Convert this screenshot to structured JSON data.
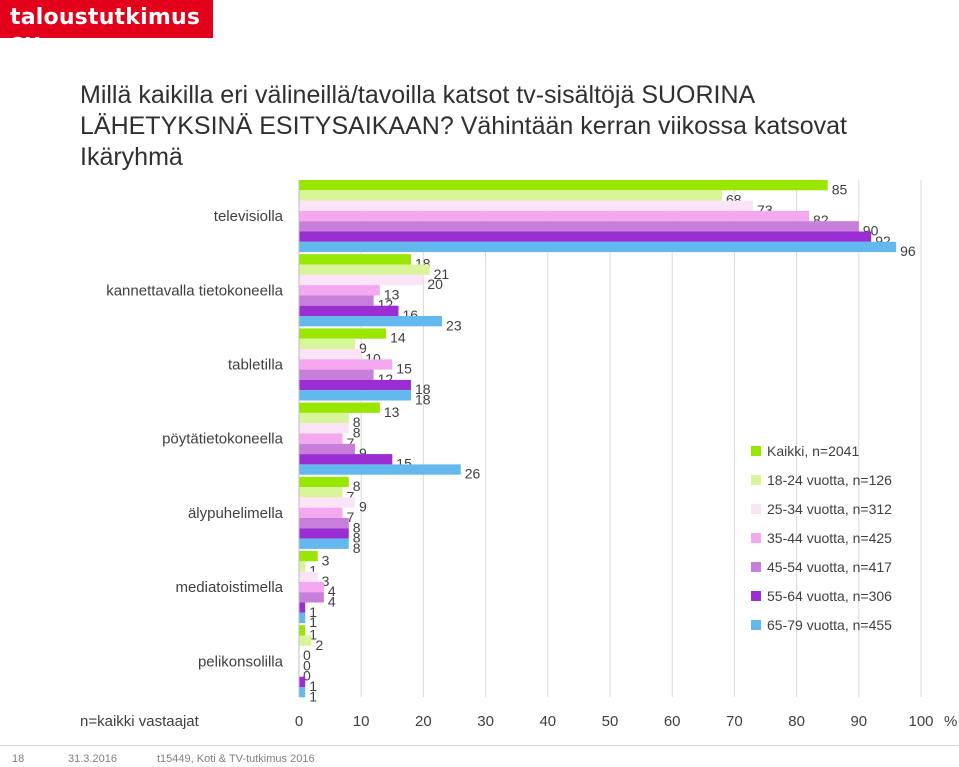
{
  "brand": {
    "logo_text": "taloustutkimus oy",
    "logo_color": "#e3001b"
  },
  "title": {
    "line1": "Millä kaikilla eri välineillä/tavoilla katsot tv-sisältöjä SUORINA LÄHETYKSINÄ ESITYSAIKAAN? Vähintään kerran viikossa katsovat",
    "line2": "Ikäryhmä"
  },
  "footer": {
    "page": "18",
    "date": "31.3.2016",
    "source": "t15449, Koti & TV-tutkimus 2016"
  },
  "chart_data": {
    "type": "bar",
    "orientation": "horizontal",
    "categories": [
      "televisiolla",
      "kannettavalla tietokoneella",
      "tabletilla",
      "pöytätietokoneella",
      "älypuhelimella",
      "mediatoistimella",
      "pelikonsolilla"
    ],
    "series": [
      {
        "name": "Kaikki, n=2041",
        "color": "#99e600",
        "values": [
          85,
          18,
          14,
          13,
          8,
          3,
          1
        ]
      },
      {
        "name": "18-24 vuotta, n=126",
        "color": "#d9f59a",
        "values": [
          68,
          21,
          9,
          8,
          7,
          1,
          2
        ]
      },
      {
        "name": "25-34 vuotta, n=312",
        "color": "#fbe3f8",
        "values": [
          73,
          20,
          10,
          8,
          9,
          3,
          0
        ]
      },
      {
        "name": "35-44 vuotta, n=425",
        "color": "#f4a8f0",
        "values": [
          82,
          13,
          15,
          7,
          7,
          4,
          0
        ]
      },
      {
        "name": "45-54 vuotta, n=417",
        "color": "#c87fdc",
        "values": [
          90,
          12,
          12,
          9,
          8,
          4,
          0
        ]
      },
      {
        "name": "55-64 vuotta, n=306",
        "color": "#9b2ed2",
        "values": [
          92,
          16,
          18,
          15,
          8,
          1,
          1
        ]
      },
      {
        "name": "65-79 vuotta, n=455",
        "color": "#63b8ed",
        "values": [
          96,
          23,
          18,
          26,
          8,
          1,
          1
        ]
      }
    ],
    "xlim": [
      0,
      100
    ],
    "xticks": [
      "0",
      "10",
      "20",
      "30",
      "40",
      "50",
      "60",
      "70",
      "80",
      "90",
      "100"
    ],
    "xunit": "%",
    "xlabel": "n=kaikki vastaajat",
    "grid": true,
    "legend_position": "right"
  }
}
